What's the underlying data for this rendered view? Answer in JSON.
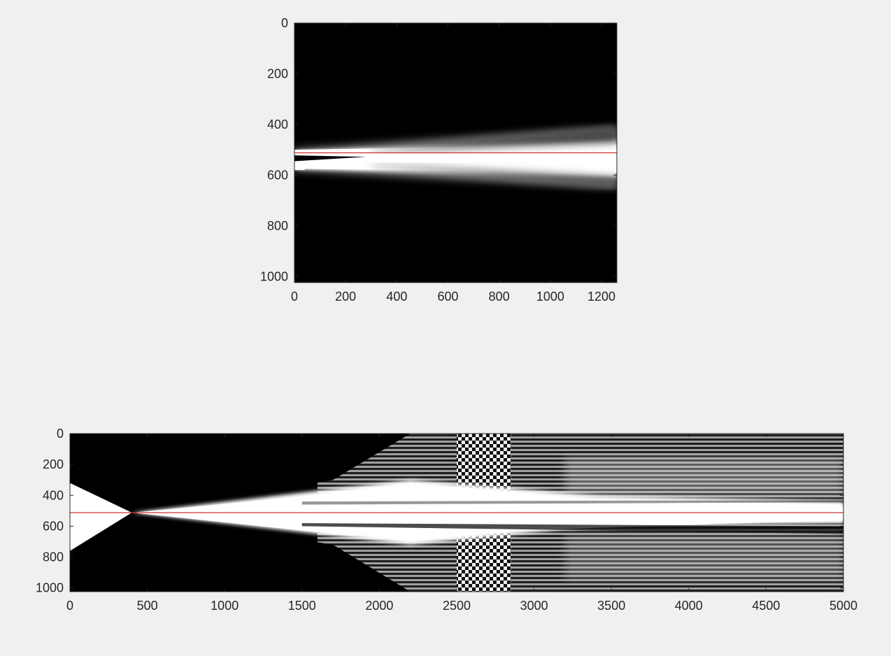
{
  "figure": {
    "background": "#f0f0f0",
    "axis_color": "#262626",
    "line_color": "#cc3333"
  },
  "chart_data": [
    {
      "type": "heatmap",
      "colormap": "gray",
      "xlim": [
        0,
        1260
      ],
      "ylim": [
        0,
        1024
      ],
      "y_direction": "reversed",
      "x_ticks": [
        0,
        200,
        400,
        600,
        800,
        1000,
        1200
      ],
      "y_ticks": [
        0,
        200,
        400,
        600,
        800,
        1000
      ],
      "x_tick_labels": [
        "0",
        "200",
        "400",
        "600",
        "800",
        "1000",
        "1200"
      ],
      "y_tick_labels": [
        "0",
        "200",
        "400",
        "600",
        "800",
        "1000"
      ],
      "grid": false,
      "overlay_line": {
        "y": 512,
        "x": [
          0,
          1260
        ],
        "color": "#cc3333"
      },
      "beam": {
        "center_y": 530,
        "upper_edge_y_at_x0": 500,
        "upper_edge_y_at_xmax": 410,
        "lower_edge_y_at_x0": 580,
        "lower_edge_y_at_xmax": 650,
        "dark_core_end_x": 280
      }
    },
    {
      "type": "heatmap",
      "colormap": "gray",
      "xlim": [
        0,
        5000
      ],
      "ylim": [
        0,
        1024
      ],
      "y_direction": "reversed",
      "x_ticks": [
        0,
        500,
        1000,
        1500,
        2000,
        2500,
        3000,
        3500,
        4000,
        4500,
        5000
      ],
      "y_ticks": [
        0,
        200,
        400,
        600,
        800,
        1000
      ],
      "x_tick_labels": [
        "0",
        "500",
        "1000",
        "1500",
        "2000",
        "2500",
        "3000",
        "3500",
        "4000",
        "4500",
        "5000"
      ],
      "y_tick_labels": [
        "0",
        "200",
        "400",
        "600",
        "800",
        "1000"
      ],
      "grid": false,
      "overlay_line": {
        "y": 512,
        "x": [
          0,
          5000
        ],
        "color": "#cc3333"
      },
      "beam": {
        "focus_x": 400,
        "focus_y": 512,
        "edge_y_at_x0_top": 320,
        "edge_y_at_x0_bottom": 760,
        "interference_band_x": [
          2500,
          2850
        ]
      }
    }
  ]
}
